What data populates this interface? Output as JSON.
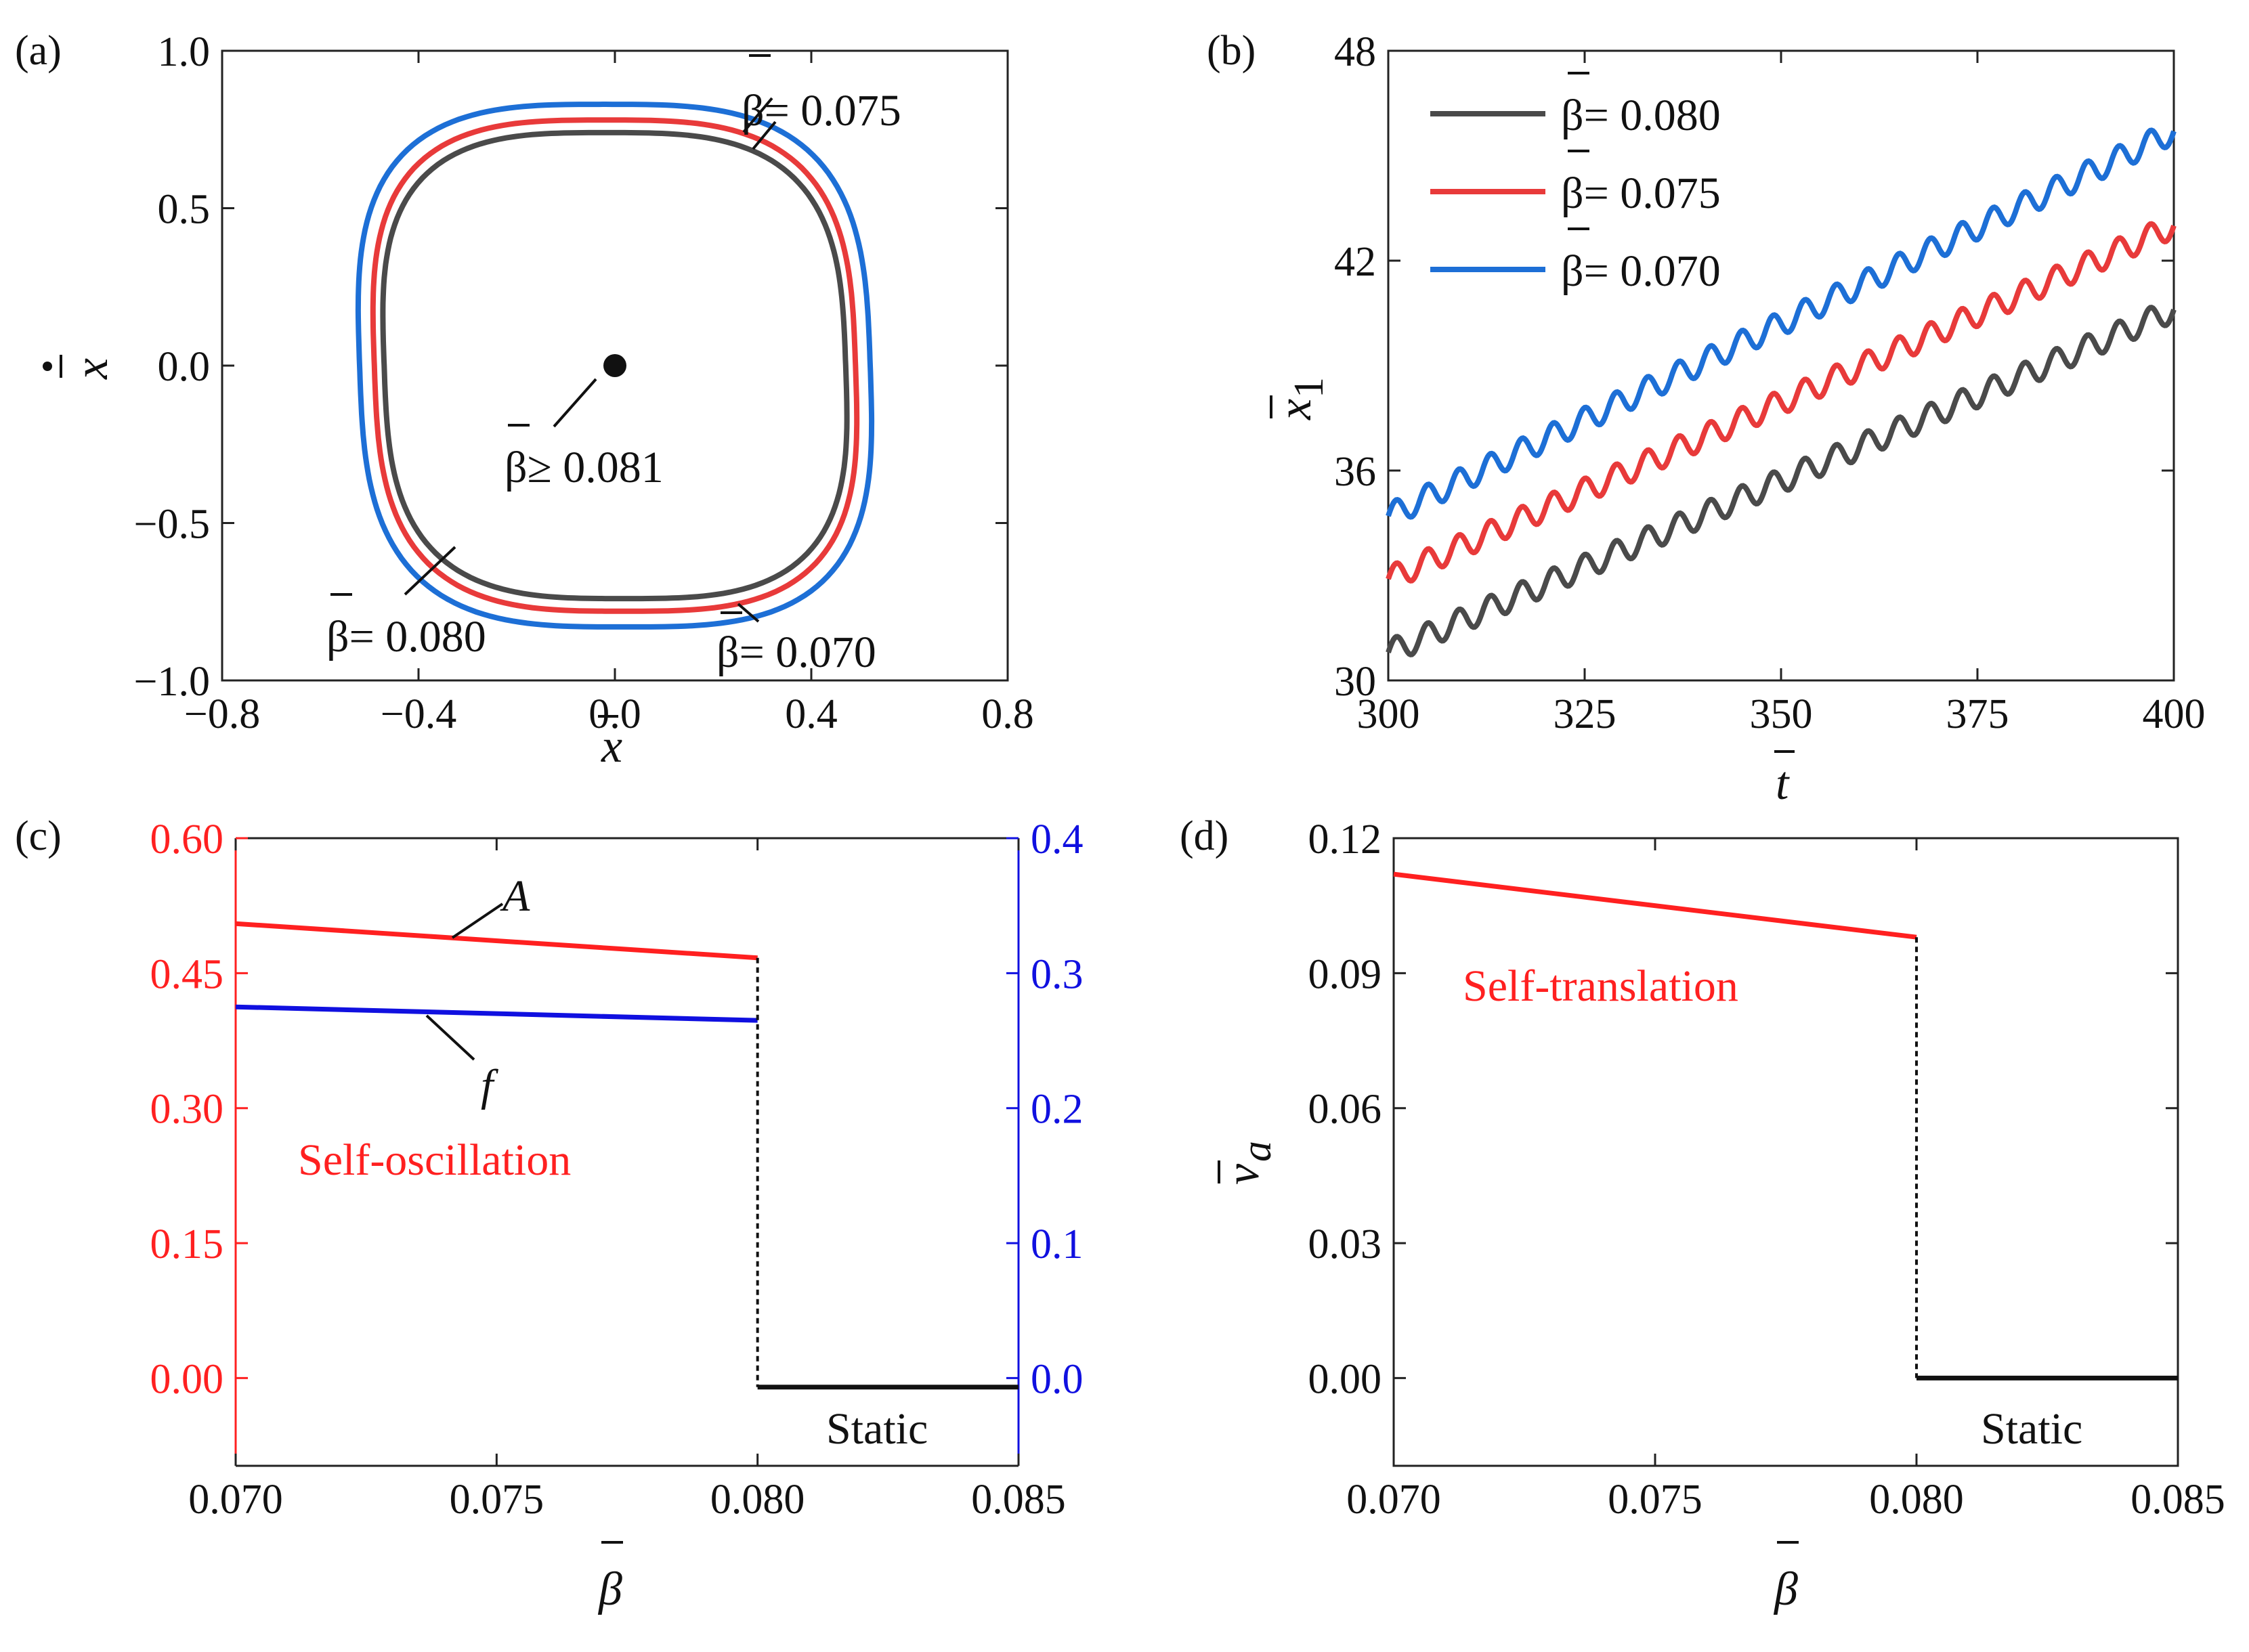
{
  "chart_data": [
    {
      "panel": "(a)",
      "type": "line",
      "xlabel": "x",
      "ylabel": "ẋ",
      "xlim": [
        -0.8,
        0.8
      ],
      "ylim": [
        -1.0,
        1.0
      ],
      "xticks": [
        -0.8,
        -0.4,
        0.0,
        0.4,
        0.8
      ],
      "xtick_labels": [
        "−0.8",
        "−0.4",
        "0.0",
        "0.4",
        "0.8"
      ],
      "yticks": [
        -1.0,
        -0.5,
        0.0,
        0.5,
        1.0
      ],
      "ytick_labels": [
        "−1.0",
        "−0.5",
        "0.0",
        "0.5",
        "1.0"
      ],
      "series": [
        {
          "name": "β= 0.080",
          "color": "#4a4a4a",
          "xmin": -0.47,
          "xmax": 0.47,
          "ymin": -0.74,
          "ymax": 0.74
        },
        {
          "name": "β= 0.075",
          "color": "#e83a3a",
          "xmin": -0.49,
          "xmax": 0.49,
          "ymin": -0.78,
          "ymax": 0.78
        },
        {
          "name": "β= 0.070",
          "color": "#1d6fd6",
          "xmin": -0.52,
          "xmax": 0.52,
          "ymin": -0.83,
          "ymax": 0.83
        }
      ],
      "fixed_point": {
        "x": 0.0,
        "y": 0.0,
        "label": "β≥ 0.081"
      },
      "annotations": [
        "β= 0.075",
        "β= 0.080",
        "β= 0.070",
        "β≥ 0.081"
      ]
    },
    {
      "panel": "(b)",
      "type": "line",
      "xlabel": "t",
      "ylabel": "x₁",
      "xlim": [
        300,
        400
      ],
      "ylim": [
        30,
        48
      ],
      "xticks": [
        300,
        325,
        350,
        375,
        400
      ],
      "xtick_labels": [
        "300",
        "325",
        "350",
        "375",
        "400"
      ],
      "yticks": [
        30,
        36,
        42,
        48
      ],
      "ytick_labels": [
        "30",
        "36",
        "42",
        "48"
      ],
      "legend": "top-left",
      "series": [
        {
          "name": "β= 0.080",
          "color": "#4a4a4a",
          "start": 30.8,
          "end": 40.6,
          "amplitude": 0.35,
          "period": 4.0
        },
        {
          "name": "β= 0.075",
          "color": "#e83a3a",
          "start": 32.9,
          "end": 43.0,
          "amplitude": 0.35,
          "period": 4.0
        },
        {
          "name": "β= 0.070",
          "color": "#1d6fd6",
          "start": 34.7,
          "end": 45.7,
          "amplitude": 0.35,
          "period": 4.0
        }
      ]
    },
    {
      "panel": "(c)",
      "type": "line",
      "xlabel": "β",
      "xlim": [
        0.07,
        0.085
      ],
      "xticks": [
        0.07,
        0.075,
        0.08,
        0.085
      ],
      "xtick_labels": [
        "0.070",
        "0.075",
        "0.080",
        "0.085"
      ],
      "ylim_left": [
        -0.0975,
        0.6
      ],
      "yticks_left": [
        0.0,
        0.15,
        0.3,
        0.45,
        0.6
      ],
      "ytick_labels_left": [
        "0.00",
        "0.15",
        "0.30",
        "0.45",
        "0.60"
      ],
      "left_axis_color": "#ff2020",
      "ylim_right": [
        -0.065,
        0.4
      ],
      "yticks_right": [
        0.0,
        0.1,
        0.2,
        0.3,
        0.4
      ],
      "ytick_labels_right": [
        "0.0",
        "0.1",
        "0.2",
        "0.3",
        "0.4"
      ],
      "right_axis_color": "#1010e0",
      "series": [
        {
          "name": "A",
          "axis": "left",
          "color": "#ff2020",
          "x": [
            0.07,
            0.08
          ],
          "y": [
            0.505,
            0.467
          ]
        },
        {
          "name": "f",
          "axis": "right",
          "color": "#1010e0",
          "x": [
            0.07,
            0.08
          ],
          "y": [
            0.275,
            0.265
          ]
        },
        {
          "name": "Static",
          "axis": "left",
          "color": "#111111",
          "x": [
            0.08,
            0.085
          ],
          "y": [
            -0.01,
            -0.01
          ]
        }
      ],
      "jump_x": 0.08,
      "annotations": [
        "A",
        "f",
        "Self-oscillation",
        "Static"
      ]
    },
    {
      "panel": "(d)",
      "type": "line",
      "xlabel": "β",
      "ylabel": "v_a",
      "xlim": [
        0.07,
        0.085
      ],
      "xticks": [
        0.07,
        0.075,
        0.08,
        0.085
      ],
      "xtick_labels": [
        "0.070",
        "0.075",
        "0.080",
        "0.085"
      ],
      "ylim": [
        -0.0195,
        0.12
      ],
      "yticks": [
        0.0,
        0.03,
        0.06,
        0.09,
        0.12
      ],
      "ytick_labels": [
        "0.00",
        "0.03",
        "0.06",
        "0.09",
        "0.12"
      ],
      "series": [
        {
          "name": "Self-translation",
          "color": "#ff2020",
          "x": [
            0.07,
            0.08
          ],
          "y": [
            0.112,
            0.098
          ]
        },
        {
          "name": "Static",
          "color": "#111111",
          "x": [
            0.08,
            0.085
          ],
          "y": [
            0.0,
            0.0
          ]
        }
      ],
      "jump_x": 0.08,
      "annotations": [
        "Self-translation",
        "Static"
      ]
    }
  ],
  "labels": {
    "panel_a": "(a)",
    "panel_b": "(b)",
    "panel_c": "(c)",
    "panel_d": "(d)",
    "a_xlabel": "x",
    "a_ylabel": "x",
    "a_ann_075": "β= 0.075",
    "a_ann_080": "β= 0.080",
    "a_ann_070": "β= 0.070",
    "a_ann_081": "β≥ 0.081",
    "b_xlabel": "t",
    "b_ylabel": "x",
    "b_ylabel_sub": "1",
    "b_leg_080": "β= 0.080",
    "b_leg_075": "β= 0.075",
    "b_leg_070": "β= 0.070",
    "c_xlabel": "β",
    "c_A": "A",
    "c_f": "f",
    "c_selfosc": "Self-oscillation",
    "c_static": "Static",
    "d_xlabel": "β",
    "d_ylabel": "v",
    "d_ylabel_sub": "a",
    "d_selftrans": "Self-translation",
    "d_static": "Static"
  },
  "colors": {
    "gray": "#4a4a4a",
    "red": "#e83a3a",
    "blue": "#1d6fd6",
    "c_red": "#ff2020",
    "c_blue": "#1010e0"
  }
}
